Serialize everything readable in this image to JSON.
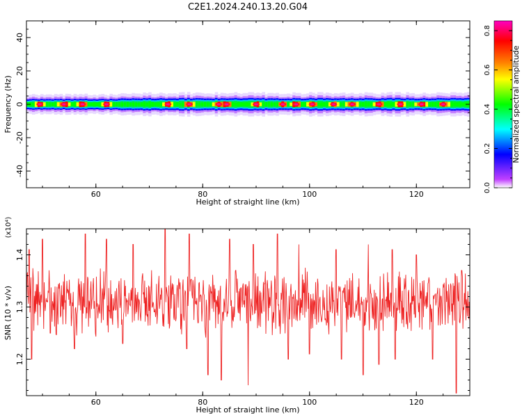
{
  "title": "C2E1.2024.240.13.20.G04",
  "chart_data": [
    {
      "type": "heatmap",
      "title": "C2E1.2024.240.13.20.G04",
      "xlabel": "Height of straight line (km)",
      "ylabel": "Frequency (Hz)",
      "xlim": [
        47,
        130
      ],
      "ylim": [
        -50,
        50
      ],
      "x_ticks": [
        "60",
        "80",
        "100",
        "120"
      ],
      "y_ticks": [
        "40",
        "20",
        "0",
        "-20",
        "-40"
      ],
      "band": {
        "center_hz": 0,
        "half_width_hz": 5
      },
      "hotspots_km": [
        49.5,
        54,
        57.5,
        62,
        73.5,
        77.5,
        83,
        84.5,
        90,
        95,
        97.5,
        100.5,
        104.5,
        108,
        113,
        117,
        121,
        125
      ],
      "colorbar": {
        "label": "Normalized spectral amplitude",
        "range": [
          0,
          0.85
        ],
        "ticks": [
          "0.0",
          "0.2",
          "0.4",
          "0.6",
          "0.8"
        ],
        "colormap": [
          "#ffffff",
          "#c040ff",
          "#0000ff",
          "#00ffff",
          "#00ff00",
          "#ffff00",
          "#ff8000",
          "#ff0000",
          "#ff00c0"
        ]
      },
      "grid": false
    },
    {
      "type": "line",
      "xlabel": "Height of straight line (km)",
      "ylabel": "SNR (10 * v/v)",
      "y_multiplier": "(x10⁴)",
      "xlim": [
        47,
        130
      ],
      "ylim": [
        1.13,
        1.45
      ],
      "x_ticks": [
        "60",
        "80",
        "100",
        "120"
      ],
      "y_ticks": [
        "1.4",
        "1.3",
        "1.2"
      ],
      "series": [
        {
          "color": "#ee2222",
          "x_start_km": 47,
          "x_end_km": 130,
          "baseline": 1.31,
          "spikes_up": [
            [
              47.5,
              1.41
            ],
            [
              50,
              1.43
            ],
            [
              58,
              1.44
            ],
            [
              62,
              1.43
            ],
            [
              67,
              1.42
            ],
            [
              73,
              1.45
            ],
            [
              77.5,
              1.44
            ],
            [
              85,
              1.43
            ],
            [
              89.5,
              1.42
            ],
            [
              94,
              1.44
            ],
            [
              98,
              1.42
            ],
            [
              105,
              1.41
            ],
            [
              111,
              1.42
            ],
            [
              115.5,
              1.41
            ],
            [
              120,
              1.4
            ],
            [
              128.5,
              1.37
            ]
          ],
          "spikes_down": [
            [
              48,
              1.2
            ],
            [
              51.5,
              1.25
            ],
            [
              56,
              1.22
            ],
            [
              65,
              1.23
            ],
            [
              77,
              1.22
            ],
            [
              81,
              1.17
            ],
            [
              83.5,
              1.16
            ],
            [
              88.5,
              1.15
            ],
            [
              96,
              1.2
            ],
            [
              100,
              1.21
            ],
            [
              106,
              1.2
            ],
            [
              110,
              1.17
            ],
            [
              113,
              1.19
            ],
            [
              116,
              1.2
            ],
            [
              123,
              1.2
            ],
            [
              127.5,
              1.135
            ]
          ]
        }
      ],
      "grid": false
    }
  ]
}
